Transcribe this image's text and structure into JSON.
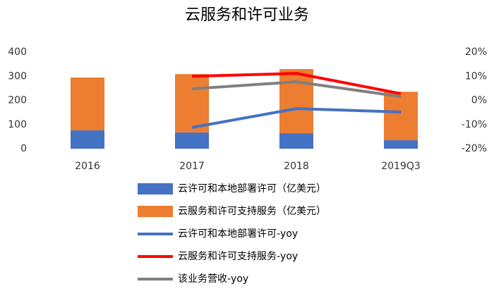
{
  "chart_data": {
    "type": "bar",
    "title": "云服务和许可业务",
    "categories": [
      "2016",
      "2017",
      "2018",
      "2019Q3"
    ],
    "ylim": [
      0,
      400
    ],
    "yticks": [
      0,
      100,
      200,
      300,
      400
    ],
    "y2lim": [
      -20,
      20
    ],
    "y2ticks": [
      {
        "value": -20,
        "label": "-20%"
      },
      {
        "value": -10,
        "label": "-10%"
      },
      {
        "value": 0,
        "label": "0%"
      },
      {
        "value": 10,
        "label": "10%"
      },
      {
        "value": 20,
        "label": "20%"
      }
    ],
    "grid": false,
    "stacked": true,
    "legend": "bottom",
    "series": [
      {
        "name": "云许可和本地部署许可（亿美元）",
        "type": "bar",
        "color": "#4472c4",
        "values": [
          76,
          67,
          64,
          35
        ]
      },
      {
        "name": "云服务和许可支持服务（亿美元）",
        "type": "bar",
        "color": "#ed7d31",
        "values": [
          219,
          242,
          266,
          201
        ]
      },
      {
        "name": "云许可和本地部署许可-yoy",
        "type": "line",
        "axis": "y2",
        "color": "#4472c4",
        "values": [
          null,
          -11.2,
          -3.4,
          -4.8
        ]
      },
      {
        "name": "云服务和许可支持服务-yoy",
        "type": "line",
        "axis": "y2",
        "color": "#ff0000",
        "values": [
          null,
          10,
          11.2,
          2.8
        ]
      },
      {
        "name": "该业务营收-yoy",
        "type": "line",
        "axis": "y2",
        "color": "#808080",
        "values": [
          null,
          4.8,
          7.7,
          1.6
        ]
      }
    ]
  }
}
